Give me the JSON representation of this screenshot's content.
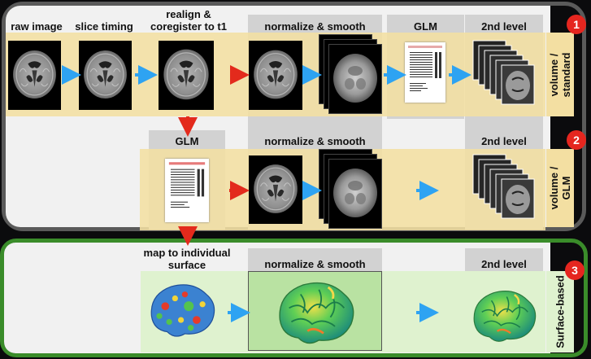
{
  "steps": {
    "raw_image": "raw image",
    "slice_timing": "slice timing",
    "realign": "realign &\ncoregister to t1",
    "normalize_smooth_1": "normalize & smooth",
    "glm_1": "GLM",
    "second_level_1": "2nd level",
    "glm_2": "GLM",
    "normalize_smooth_2": "normalize & smooth",
    "second_level_2": "2nd level",
    "map_surface": "map to individual\nsurface",
    "normalize_smooth_3": "normalize & smooth",
    "second_level_3": "2nd level"
  },
  "pipelines": [
    {
      "number": "1",
      "label": "volume /\nstandard"
    },
    {
      "number": "2",
      "label": "volume /\nGLM"
    },
    {
      "number": "3",
      "label": "Surface-based"
    }
  ],
  "colors": {
    "volume_band": "#f3dfa2",
    "surface_band": "#dff2cf",
    "frame_gray": "#555555",
    "frame_green": "#3a8c2a",
    "badge_red": "#e5261f",
    "arrow_blue": "#2ea3f2",
    "arrow_red": "#e32a1c"
  },
  "icons": {
    "brain_slice": "brain-mri-slice-icon",
    "glm_document": "glm-design-matrix-icon",
    "surface_brain": "cortical-surface-brain-icon"
  }
}
